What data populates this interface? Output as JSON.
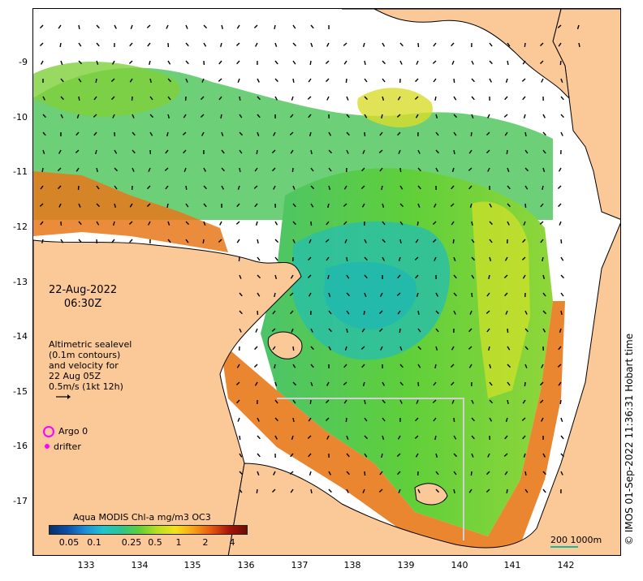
{
  "header": {
    "date": "22-Aug-2022",
    "time": "06:30Z"
  },
  "annotation": {
    "lines": [
      "Altimetric sealevel",
      "(0.1m contours)",
      "and velocity for",
      "22 Aug 05Z",
      "0.5m/s (1kt 12h)"
    ]
  },
  "legend": {
    "argo": "Argo 0",
    "drifter": "drifter",
    "argo_color": "#ff00ff",
    "drifter_color": "#ff00ff"
  },
  "colorbar": {
    "title": "Aqua MODIS Chl-a mg/m3 OC3",
    "ticks": [
      "0.05",
      "0.1",
      "0.25",
      "0.5",
      "1",
      "2",
      "4"
    ]
  },
  "scale": {
    "label": "200  1000m",
    "color": "#18b8a0"
  },
  "credit": "© IMOS 01-Sep-2022 11:36:31 Hobart time",
  "axes": {
    "lat_labels": [
      "-9",
      "-10",
      "-11",
      "-12",
      "-13",
      "-14",
      "-15",
      "-16",
      "-17"
    ],
    "lon_labels": [
      "133",
      "134",
      "135",
      "136",
      "137",
      "138",
      "139",
      "140",
      "141",
      "142"
    ]
  },
  "colors": {
    "land": "#fbc898",
    "coastline": "#000000",
    "no_data": "#ffffff",
    "chl_low": "#21c4cc",
    "chl_mid": "#5fcf3a",
    "chl_high": "#f3e21b",
    "chl_coastal": "#e65a10"
  }
}
